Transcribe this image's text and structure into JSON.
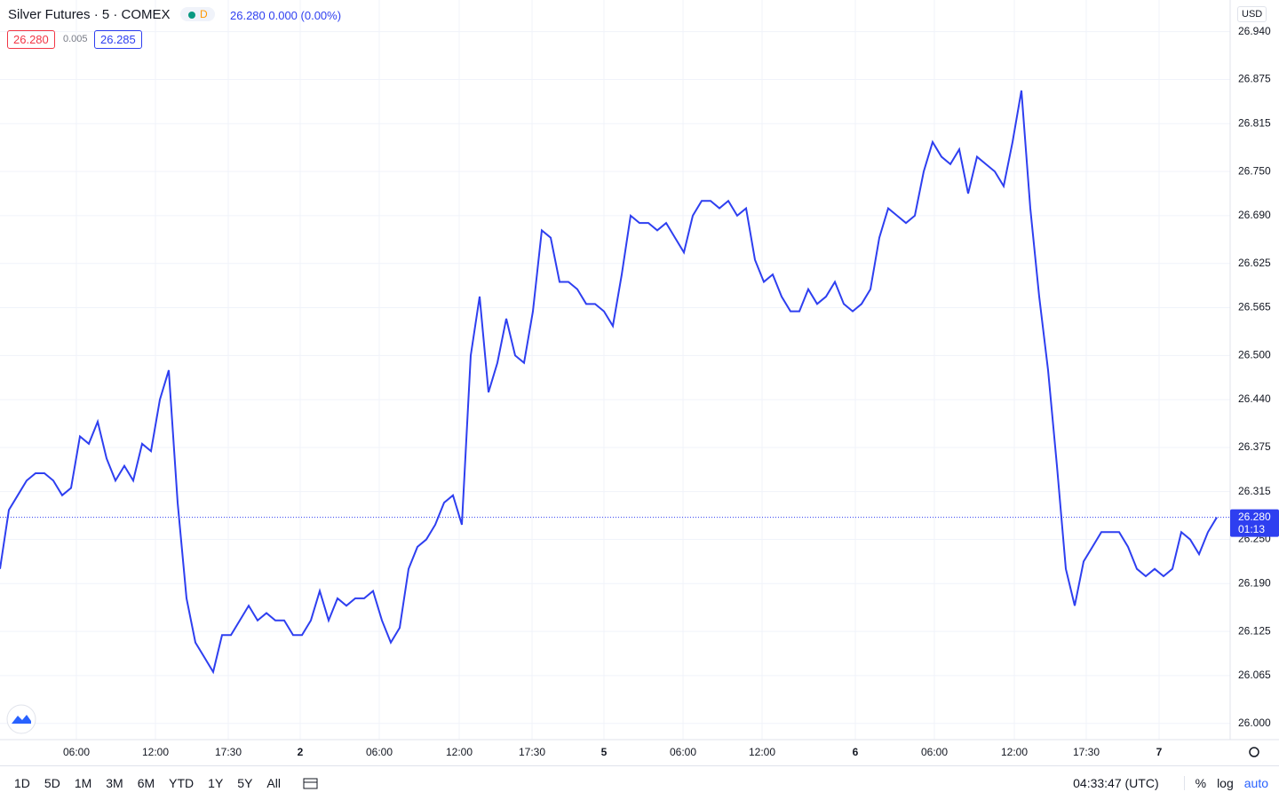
{
  "chart_data": {
    "type": "line",
    "title": "Silver Futures · 5 · COMEX",
    "interval_badge": "D",
    "header_quote": "26.280 0.000 (0.00%)",
    "bid": "26.280",
    "spread": "0.005",
    "ask": "26.285",
    "currency": "USD",
    "price_line": {
      "value": 26.28,
      "label": "26.280"
    },
    "countdown": "01:13",
    "grid": true,
    "xlim": [
      0,
      138.5
    ],
    "xticks": [
      {
        "value": 8.6,
        "label": "06:00"
      },
      {
        "value": 17.5,
        "label": "12:00"
      },
      {
        "value": 25.7,
        "label": "17:30"
      },
      {
        "value": 33.8,
        "label": "2"
      },
      {
        "value": 42.7,
        "label": "06:00"
      },
      {
        "value": 51.7,
        "label": "12:00"
      },
      {
        "value": 59.9,
        "label": "17:30"
      },
      {
        "value": 68,
        "label": "5"
      },
      {
        "value": 76.9,
        "label": "06:00"
      },
      {
        "value": 85.8,
        "label": "12:00"
      },
      {
        "value": 96.3,
        "label": "6"
      },
      {
        "value": 105.2,
        "label": "06:00"
      },
      {
        "value": 114.2,
        "label": "12:00"
      },
      {
        "value": 122.3,
        "label": "17:30"
      },
      {
        "value": 130.5,
        "label": "7"
      }
    ],
    "ylim": [
      25.978,
      26.983
    ],
    "yticks": [
      {
        "value": 26.94,
        "label": "26.940"
      },
      26.875,
      26.815,
      {
        "value": 26.75,
        "label": "26.750"
      },
      {
        "value": 26.69,
        "label": "26.690"
      },
      26.625,
      26.565,
      {
        "value": 26.5,
        "label": "26.500"
      },
      {
        "value": 26.44,
        "label": "26.440"
      },
      26.375,
      26.315,
      {
        "value": 26.25,
        "label": "26.250"
      },
      {
        "value": 26.19,
        "label": "26.190"
      },
      26.125,
      26.065,
      {
        "value": 26,
        "label": "26.000"
      }
    ],
    "series": [
      {
        "name": "Silver Futures",
        "color": "#2e3ff0",
        "values": [
          26.21,
          26.29,
          26.31,
          26.33,
          26.34,
          26.34,
          26.33,
          26.31,
          26.32,
          26.39,
          26.38,
          26.41,
          26.36,
          26.33,
          26.35,
          26.33,
          26.38,
          26.37,
          26.44,
          26.48,
          26.3,
          26.17,
          26.11,
          26.09,
          26.07,
          26.12,
          26.12,
          26.14,
          26.16,
          26.14,
          26.15,
          26.14,
          26.14,
          26.12,
          26.12,
          26.14,
          26.18,
          26.14,
          26.17,
          26.16,
          26.17,
          26.17,
          26.18,
          26.14,
          26.11,
          26.13,
          26.21,
          26.24,
          26.25,
          26.27,
          26.3,
          26.31,
          26.27,
          26.5,
          26.58,
          26.45,
          26.49,
          26.55,
          26.5,
          26.49,
          26.56,
          26.67,
          26.66,
          26.6,
          26.6,
          26.59,
          26.57,
          26.57,
          26.56,
          26.54,
          26.61,
          26.69,
          26.68,
          26.68,
          26.67,
          26.68,
          26.66,
          26.64,
          26.69,
          26.71,
          26.71,
          26.7,
          26.71,
          26.69,
          26.7,
          26.63,
          26.6,
          26.61,
          26.58,
          26.56,
          26.56,
          26.59,
          26.57,
          26.58,
          26.6,
          26.57,
          26.56,
          26.57,
          26.59,
          26.66,
          26.7,
          26.69,
          26.68,
          26.69,
          26.75,
          26.79,
          26.77,
          26.76,
          26.78,
          26.72,
          26.77,
          26.76,
          26.75,
          26.73,
          26.79,
          26.86,
          26.7,
          26.58,
          26.48,
          26.35,
          26.21,
          26.16,
          26.22,
          26.24,
          26.26,
          26.26,
          26.26,
          26.24,
          26.21,
          26.2,
          26.21,
          26.2,
          26.21,
          26.26,
          26.25,
          26.23,
          26.26,
          26.28
        ]
      }
    ]
  },
  "toolbar": {
    "ranges": [
      "1D",
      "5D",
      "1M",
      "3M",
      "6M",
      "YTD",
      "1Y",
      "5Y",
      "All"
    ],
    "clock": "04:33:47 (UTC)",
    "percent": "%",
    "log": "log",
    "auto": "auto"
  }
}
